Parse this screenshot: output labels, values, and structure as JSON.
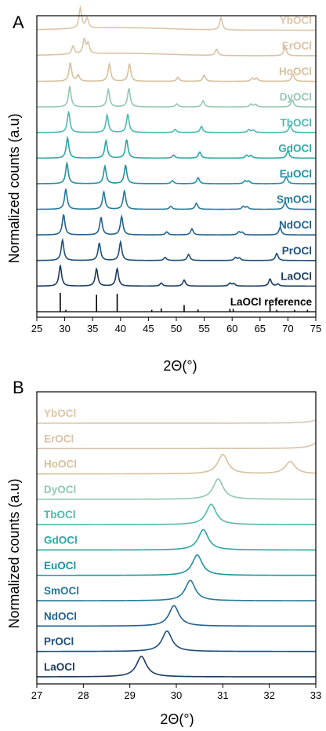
{
  "chart_data": [
    {
      "panel": "A",
      "type": "line",
      "xlabel": "2Θ(°)",
      "ylabel": "Normalized counts (a.u)",
      "xlim": [
        25,
        75
      ],
      "xticks": [
        "25",
        "30",
        "35",
        "40",
        "45",
        "50",
        "55",
        "60",
        "65",
        "70",
        "75"
      ],
      "series": [
        {
          "name": "LaOCl reference",
          "color": "#000000",
          "sticks": [
            [
              29.2,
              1.0
            ],
            [
              30.2,
              0.1
            ],
            [
              35.7,
              0.9
            ],
            [
              39.4,
              0.95
            ],
            [
              45.6,
              0.1
            ],
            [
              47.3,
              0.18
            ],
            [
              51.4,
              0.35
            ],
            [
              53.9,
              0.12
            ],
            [
              59.6,
              0.15
            ],
            [
              60.2,
              0.15
            ],
            [
              66.8,
              0.4
            ],
            [
              68.0,
              0.1
            ],
            [
              71.2,
              0.1
            ],
            [
              73.5,
              0.1
            ]
          ]
        },
        {
          "name": "LaOCl",
          "color": "#1a3a5e",
          "peaks": [
            [
              29.2,
              1.0
            ],
            [
              35.7,
              0.85
            ],
            [
              39.4,
              0.85
            ],
            [
              47.3,
              0.15
            ],
            [
              51.4,
              0.3
            ],
            [
              59.6,
              0.14
            ],
            [
              60.3,
              0.12
            ],
            [
              66.8,
              0.35
            ],
            [
              68.2,
              0.1
            ]
          ]
        },
        {
          "name": "PrOCl",
          "color": "#1d4e7a",
          "peaks": [
            [
              29.6,
              1.0
            ],
            [
              36.2,
              0.85
            ],
            [
              40.0,
              0.9
            ],
            [
              48.0,
              0.15
            ],
            [
              52.2,
              0.3
            ],
            [
              60.6,
              0.14
            ],
            [
              61.3,
              0.12
            ],
            [
              68.0,
              0.35
            ]
          ]
        },
        {
          "name": "NdOCl",
          "color": "#21618e",
          "peaks": [
            [
              29.8,
              1.0
            ],
            [
              36.5,
              0.85
            ],
            [
              40.2,
              0.9
            ],
            [
              48.3,
              0.15
            ],
            [
              52.8,
              0.3
            ],
            [
              61.2,
              0.14
            ],
            [
              61.8,
              0.12
            ],
            [
              68.6,
              0.35
            ]
          ]
        },
        {
          "name": "SmOCl",
          "color": "#24799a",
          "peaks": [
            [
              30.2,
              1.0
            ],
            [
              37.0,
              0.85
            ],
            [
              40.7,
              0.9
            ],
            [
              49.0,
              0.15
            ],
            [
              53.6,
              0.3
            ],
            [
              62.0,
              0.14
            ],
            [
              62.7,
              0.12
            ],
            [
              69.5,
              0.35
            ]
          ]
        },
        {
          "name": "EuOCl",
          "color": "#2191a1",
          "peaks": [
            [
              30.4,
              1.0
            ],
            [
              37.2,
              0.85
            ],
            [
              40.9,
              0.9
            ],
            [
              49.3,
              0.15
            ],
            [
              53.9,
              0.3
            ],
            [
              62.3,
              0.14
            ],
            [
              63.0,
              0.12
            ],
            [
              69.7,
              0.35
            ]
          ]
        },
        {
          "name": "GdOCl",
          "color": "#2ba8a4",
          "peaks": [
            [
              30.5,
              1.0
            ],
            [
              37.4,
              0.85
            ],
            [
              41.1,
              0.9
            ],
            [
              49.5,
              0.15
            ],
            [
              54.2,
              0.3
            ],
            [
              62.6,
              0.14
            ],
            [
              63.4,
              0.12
            ],
            [
              70.0,
              0.35
            ]
          ]
        },
        {
          "name": "TbOCl",
          "color": "#4dbab0",
          "peaks": [
            [
              30.7,
              1.0
            ],
            [
              37.6,
              0.85
            ],
            [
              41.3,
              0.9
            ],
            [
              49.8,
              0.15
            ],
            [
              54.5,
              0.3
            ],
            [
              63.0,
              0.14
            ],
            [
              63.8,
              0.12
            ],
            [
              70.4,
              0.35
            ]
          ]
        },
        {
          "name": "DyOCl",
          "color": "#92c8b2",
          "peaks": [
            [
              30.9,
              1.0
            ],
            [
              37.8,
              0.85
            ],
            [
              41.5,
              0.9
            ],
            [
              50.1,
              0.15
            ],
            [
              54.8,
              0.3
            ],
            [
              63.4,
              0.14
            ],
            [
              64.2,
              0.12
            ],
            [
              70.8,
              0.35
            ]
          ]
        },
        {
          "name": "HoOCl",
          "color": "#d6c09c",
          "peaks": [
            [
              31.0,
              0.9
            ],
            [
              32.4,
              0.3
            ],
            [
              38.0,
              0.85
            ],
            [
              41.6,
              0.85
            ],
            [
              50.3,
              0.2
            ],
            [
              55.0,
              0.3
            ],
            [
              63.6,
              0.15
            ],
            [
              64.4,
              0.15
            ],
            [
              70.9,
              0.35
            ]
          ]
        },
        {
          "name": "ErOCl",
          "color": "#d9c2a6",
          "peaks": [
            [
              31.5,
              0.4
            ],
            [
              33.5,
              0.7
            ],
            [
              34.2,
              0.5
            ],
            [
              57.2,
              0.3
            ],
            [
              69.5,
              0.45
            ]
          ]
        },
        {
          "name": "YbOCl",
          "color": "#dcc5aa",
          "peaks": [
            [
              32.8,
              1.0
            ],
            [
              34.0,
              0.5
            ],
            [
              58.0,
              0.6
            ]
          ]
        }
      ]
    },
    {
      "panel": "B",
      "type": "line",
      "xlabel": "2Θ(°)",
      "ylabel": "Normalized counts (a.u)",
      "xlim": [
        27,
        33
      ],
      "xticks": [
        "27",
        "28",
        "29",
        "30",
        "31",
        "32",
        "33"
      ],
      "series": [
        {
          "name": "LaOCl",
          "color": "#1a3a5e",
          "peaks": [
            [
              29.25,
              1.0
            ]
          ]
        },
        {
          "name": "PrOCl",
          "color": "#1d4e7a",
          "peaks": [
            [
              29.8,
              1.0
            ]
          ]
        },
        {
          "name": "NdOCl",
          "color": "#21618e",
          "peaks": [
            [
              29.95,
              1.0
            ]
          ]
        },
        {
          "name": "SmOCl",
          "color": "#24799a",
          "peaks": [
            [
              30.3,
              1.0
            ]
          ]
        },
        {
          "name": "EuOCl",
          "color": "#2191a1",
          "peaks": [
            [
              30.45,
              1.0
            ]
          ]
        },
        {
          "name": "GdOCl",
          "color": "#2ba8a4",
          "peaks": [
            [
              30.58,
              1.0
            ]
          ]
        },
        {
          "name": "TbOCl",
          "color": "#4dbab0",
          "peaks": [
            [
              30.75,
              1.0
            ]
          ]
        },
        {
          "name": "DyOCl",
          "color": "#92c8b2",
          "peaks": [
            [
              30.9,
              1.0
            ]
          ]
        },
        {
          "name": "HoOCl",
          "color": "#d6c09c",
          "peaks": [
            [
              31.0,
              0.95
            ],
            [
              32.45,
              0.6
            ]
          ]
        },
        {
          "name": "ErOCl",
          "color": "#d9c2a6",
          "peaks": [
            [
              33.2,
              1.0
            ]
          ]
        },
        {
          "name": "YbOCl",
          "color": "#dcc5aa",
          "peaks": [
            [
              33.3,
              1.0
            ]
          ]
        }
      ]
    }
  ]
}
